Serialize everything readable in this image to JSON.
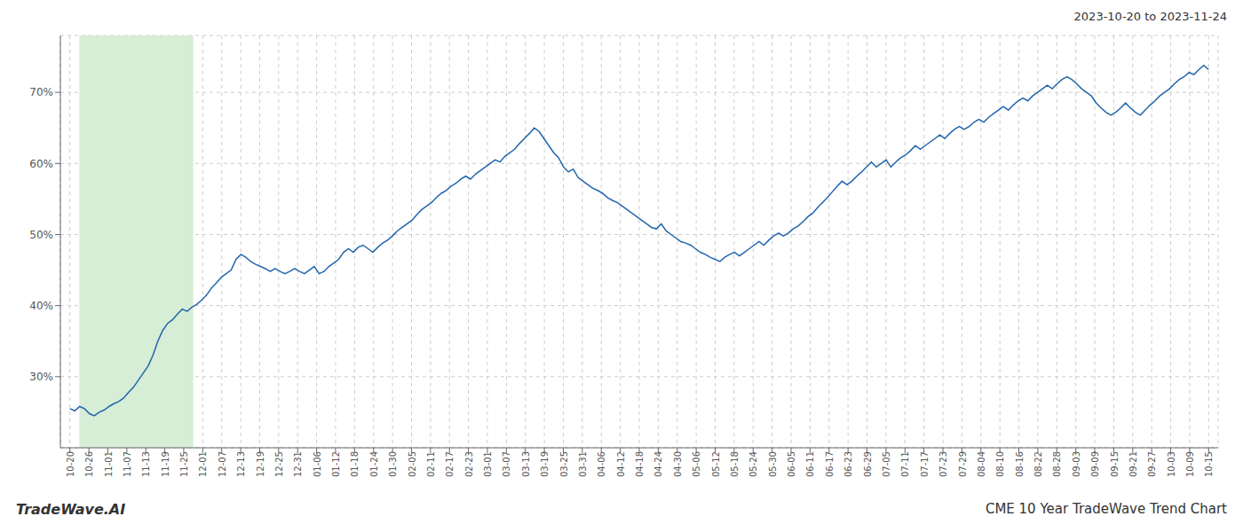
{
  "chart_data": {
    "type": "line",
    "title": "CME 10 Year TradeWave Trend Chart",
    "subtitle": "2023-10-20 to 2023-11-24",
    "annotations": [
      "TradeWave.AI"
    ],
    "color": "#2166ac",
    "grid": true,
    "xlim": [
      -0.5,
      60.5
    ],
    "xticks": [
      {
        "value": 0,
        "label": "10-20"
      },
      {
        "value": 1,
        "label": "10-26"
      },
      {
        "value": 2,
        "label": "11-01"
      },
      {
        "value": 3,
        "label": "11-07"
      },
      {
        "value": 4,
        "label": "11-13"
      },
      {
        "value": 5,
        "label": "11-19"
      },
      {
        "value": 6,
        "label": "11-25"
      },
      {
        "value": 7,
        "label": "12-01"
      },
      {
        "value": 8,
        "label": "12-07"
      },
      {
        "value": 9,
        "label": "12-13"
      },
      {
        "value": 10,
        "label": "12-19"
      },
      {
        "value": 11,
        "label": "12-25"
      },
      {
        "value": 12,
        "label": "12-31"
      },
      {
        "value": 13,
        "label": "01-06"
      },
      {
        "value": 14,
        "label": "01-12"
      },
      {
        "value": 15,
        "label": "01-18"
      },
      {
        "value": 16,
        "label": "01-24"
      },
      {
        "value": 17,
        "label": "01-30"
      },
      {
        "value": 18,
        "label": "02-05"
      },
      {
        "value": 19,
        "label": "02-11"
      },
      {
        "value": 20,
        "label": "02-17"
      },
      {
        "value": 21,
        "label": "02-23"
      },
      {
        "value": 22,
        "label": "03-01"
      },
      {
        "value": 23,
        "label": "03-07"
      },
      {
        "value": 24,
        "label": "03-13"
      },
      {
        "value": 25,
        "label": "03-19"
      },
      {
        "value": 26,
        "label": "03-25"
      },
      {
        "value": 27,
        "label": "03-31"
      },
      {
        "value": 28,
        "label": "04-06"
      },
      {
        "value": 29,
        "label": "04-12"
      },
      {
        "value": 30,
        "label": "04-18"
      },
      {
        "value": 31,
        "label": "04-24"
      },
      {
        "value": 32,
        "label": "04-30"
      },
      {
        "value": 33,
        "label": "05-06"
      },
      {
        "value": 34,
        "label": "05-12"
      },
      {
        "value": 35,
        "label": "05-18"
      },
      {
        "value": 36,
        "label": "05-24"
      },
      {
        "value": 37,
        "label": "05-30"
      },
      {
        "value": 38,
        "label": "06-05"
      },
      {
        "value": 39,
        "label": "06-11"
      },
      {
        "value": 40,
        "label": "06-17"
      },
      {
        "value": 41,
        "label": "06-23"
      },
      {
        "value": 42,
        "label": "06-29"
      },
      {
        "value": 43,
        "label": "07-05"
      },
      {
        "value": 44,
        "label": "07-11"
      },
      {
        "value": 45,
        "label": "07-17"
      },
      {
        "value": 46,
        "label": "07-23"
      },
      {
        "value": 47,
        "label": "07-29"
      },
      {
        "value": 48,
        "label": "08-04"
      },
      {
        "value": 49,
        "label": "08-10"
      },
      {
        "value": 50,
        "label": "08-16"
      },
      {
        "value": 51,
        "label": "08-22"
      },
      {
        "value": 52,
        "label": "08-28"
      },
      {
        "value": 53,
        "label": "09-03"
      },
      {
        "value": 54,
        "label": "09-09"
      },
      {
        "value": 55,
        "label": "09-15"
      },
      {
        "value": 56,
        "label": "09-21"
      },
      {
        "value": 57,
        "label": "09-27"
      },
      {
        "value": 58,
        "label": "10-03"
      },
      {
        "value": 59,
        "label": "10-09"
      },
      {
        "value": 60,
        "label": "10-15"
      }
    ],
    "ylim": [
      20,
      78
    ],
    "yticks": [
      {
        "value": 30,
        "label": "30%"
      },
      {
        "value": 40,
        "label": "40%"
      },
      {
        "value": 50,
        "label": "50%"
      },
      {
        "value": 60,
        "label": "60%"
      },
      {
        "value": 70,
        "label": "70%"
      }
    ],
    "highlight": {
      "from": 0.5,
      "to": 6.5,
      "color": "#d6edd6"
    },
    "values": [
      25.5,
      25.2,
      25.8,
      25.5,
      24.8,
      24.5,
      25.0,
      25.3,
      25.8,
      26.2,
      26.5,
      27.0,
      27.8,
      28.5,
      29.5,
      30.5,
      31.5,
      33.0,
      35.0,
      36.5,
      37.5,
      38.0,
      38.8,
      39.5,
      39.2,
      39.8,
      40.2,
      40.8,
      41.5,
      42.5,
      43.2,
      44.0,
      44.5,
      45.0,
      46.5,
      47.2,
      46.8,
      46.2,
      45.8,
      45.5,
      45.2,
      44.8,
      45.2,
      44.8,
      44.5,
      44.8,
      45.2,
      44.8,
      44.5,
      45.0,
      45.5,
      44.5,
      44.8,
      45.5,
      46.0,
      46.5,
      47.5,
      48.0,
      47.5,
      48.2,
      48.5,
      48.0,
      47.5,
      48.2,
      48.8,
      49.2,
      49.8,
      50.5,
      51.0,
      51.5,
      52.0,
      52.8,
      53.5,
      54.0,
      54.5,
      55.2,
      55.8,
      56.2,
      56.8,
      57.2,
      57.8,
      58.2,
      57.8,
      58.5,
      59.0,
      59.5,
      60.0,
      60.5,
      60.2,
      61.0,
      61.5,
      62.0,
      62.8,
      63.5,
      64.2,
      65.0,
      64.5,
      63.5,
      62.5,
      61.5,
      60.8,
      59.5,
      58.8,
      59.2,
      58.0,
      57.5,
      57.0,
      56.5,
      56.2,
      55.8,
      55.2,
      54.8,
      54.5,
      54.0,
      53.5,
      53.0,
      52.5,
      52.0,
      51.5,
      51.0,
      50.8,
      51.5,
      50.5,
      50.0,
      49.5,
      49.0,
      48.8,
      48.5,
      48.0,
      47.5,
      47.2,
      46.8,
      46.5,
      46.2,
      46.8,
      47.2,
      47.5,
      47.0,
      47.5,
      48.0,
      48.5,
      49.0,
      48.5,
      49.2,
      49.8,
      50.2,
      49.8,
      50.2,
      50.8,
      51.2,
      51.8,
      52.5,
      53.0,
      53.8,
      54.5,
      55.2,
      56.0,
      56.8,
      57.5,
      57.0,
      57.5,
      58.2,
      58.8,
      59.5,
      60.2,
      59.5,
      60.0,
      60.5,
      59.5,
      60.2,
      60.8,
      61.2,
      61.8,
      62.5,
      62.0,
      62.5,
      63.0,
      63.5,
      64.0,
      63.5,
      64.2,
      64.8,
      65.2,
      64.8,
      65.2,
      65.8,
      66.2,
      65.8,
      66.5,
      67.0,
      67.5,
      68.0,
      67.5,
      68.2,
      68.8,
      69.2,
      68.8,
      69.5,
      70.0,
      70.5,
      71.0,
      70.5,
      71.2,
      71.8,
      72.2,
      71.8,
      71.2,
      70.5,
      70.0,
      69.5,
      68.5,
      67.8,
      67.2,
      66.8,
      67.2,
      67.8,
      68.5,
      67.8,
      67.2,
      66.8,
      67.5,
      68.2,
      68.8,
      69.5,
      70.0,
      70.5,
      71.2,
      71.8,
      72.2,
      72.8,
      72.5,
      73.2,
      73.8,
      73.2
    ]
  }
}
